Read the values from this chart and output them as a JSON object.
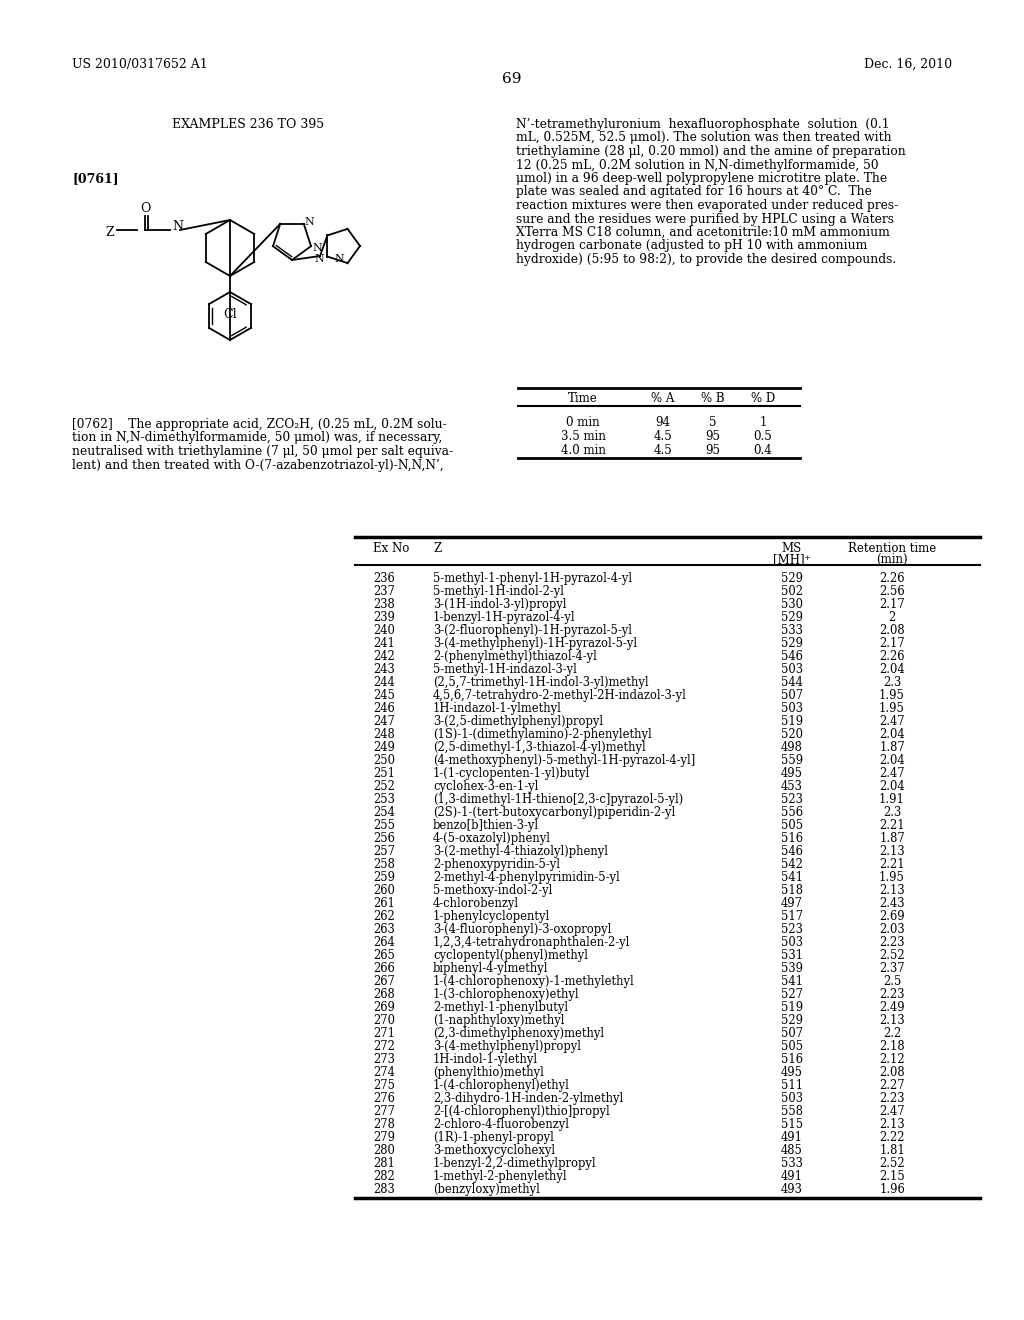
{
  "page_header_left": "US 2010/0317652 A1",
  "page_header_right": "Dec. 16, 2010",
  "page_number": "69",
  "section_title": "EXAMPLES 236 TO 395",
  "para_label1": "[0761]",
  "para_label2": "[0762]",
  "right_col_lines": [
    "N’-tetramethyluronium  hexafluorophosphate  solution  (0.1",
    "mL, 0.525M, 52.5 μmol). The solution was then treated with",
    "triethylamine (28 μl, 0.20 mmol) and the amine of preparation",
    "12 (0.25 mL, 0.2M solution in N,N-dimethylformamide, 50",
    "μmol) in a 96 deep-well polypropylene microtitre plate. The",
    "plate was sealed and agitated for 16 hours at 40° C.  The",
    "reaction mixtures were then evaporated under reduced pres-",
    "sure and the residues were purified by HPLC using a Waters",
    "XTerra MS C18 column, and acetonitrile:10 mM ammonium",
    "hydrogen carbonate (adjusted to pH 10 with ammonium",
    "hydroxide) (5:95 to 98:2), to provide the desired compounds."
  ],
  "para2_lines": [
    "[0762]    The appropriate acid, ZCO₂H, (0.25 mL, 0.2M solu-",
    "tion in N,N-dimethylformamide, 50 μmol) was, if necessary,",
    "neutralised with triethylamine (7 μl, 50 μmol per salt equiva-",
    "lent) and then treated with O-(7-azabenzotriazol-yl)-N,N,N’,"
  ],
  "hplc_headers": [
    "Time",
    "% A",
    "% B",
    "% D"
  ],
  "hplc_rows": [
    [
      "0 min",
      "94",
      "5",
      "1"
    ],
    [
      "3.5 min",
      "4.5",
      "95",
      "0.5"
    ],
    [
      "4.0 min",
      "4.5",
      "95",
      "0.4"
    ]
  ],
  "table_headers": [
    "Ex No",
    "Z",
    "MS",
    "[MH]⁺",
    "Retention time",
    "(min)"
  ],
  "table_rows": [
    [
      "236",
      "5-methyl-1-phenyl-1H-pyrazol-4-yl",
      "529",
      "2.26"
    ],
    [
      "237",
      "5-methyl-1H-indol-2-yl",
      "502",
      "2.56"
    ],
    [
      "238",
      "3-(1H-indol-3-yl)propyl",
      "530",
      "2.17"
    ],
    [
      "239",
      "1-benzyl-1H-pyrazol-4-yl",
      "529",
      "2"
    ],
    [
      "240",
      "3-(2-fluorophenyl)-1H-pyrazol-5-yl",
      "533",
      "2.08"
    ],
    [
      "241",
      "3-(4-methylphenyl)-1H-pyrazol-5-yl",
      "529",
      "2.17"
    ],
    [
      "242",
      "2-(phenylmethyl)thiazol-4-yl",
      "546",
      "2.26"
    ],
    [
      "243",
      "5-methyl-1H-indazol-3-yl",
      "503",
      "2.04"
    ],
    [
      "244",
      "(2,5,7-trimethyl-1H-indol-3-yl)methyl",
      "544",
      "2.3"
    ],
    [
      "245",
      "4,5,6,7-tetrahydro-2-methyl-2H-indazol-3-yl",
      "507",
      "1.95"
    ],
    [
      "246",
      "1H-indazol-1-ylmethyl",
      "503",
      "1.95"
    ],
    [
      "247",
      "3-(2,5-dimethylphenyl)propyl",
      "519",
      "2.47"
    ],
    [
      "248",
      "(1S)-1-(dimethylamino)-2-phenylethyl",
      "520",
      "2.04"
    ],
    [
      "249",
      "(2,5-dimethyl-1,3-thiazol-4-yl)methyl",
      "498",
      "1.87"
    ],
    [
      "250",
      "(4-methoxyphenyl)-5-methyl-1H-pyrazol-4-yl]",
      "559",
      "2.04"
    ],
    [
      "251",
      "1-(1-cyclopenten-1-yl)butyl",
      "495",
      "2.47"
    ],
    [
      "252",
      "cyclohex-3-en-1-yl",
      "453",
      "2.04"
    ],
    [
      "253",
      "(1,3-dimethyl-1H-thieno[2,3-c]pyrazol-5-yl)",
      "523",
      "1.91"
    ],
    [
      "254",
      "(2S)-1-(tert-butoxycarbonyl)piperidin-2-yl",
      "556",
      "2.3"
    ],
    [
      "255",
      "benzo[b]thien-3-yl",
      "505",
      "2.21"
    ],
    [
      "256",
      "4-(5-oxazolyl)phenyl",
      "516",
      "1.87"
    ],
    [
      "257",
      "3-(2-methyl-4-thiazolyl)phenyl",
      "546",
      "2.13"
    ],
    [
      "258",
      "2-phenoxypyridin-5-yl",
      "542",
      "2.21"
    ],
    [
      "259",
      "2-methyl-4-phenylpyrimidin-5-yl",
      "541",
      "1.95"
    ],
    [
      "260",
      "5-methoxy-indol-2-yl",
      "518",
      "2.13"
    ],
    [
      "261",
      "4-chlorobenzyl",
      "497",
      "2.43"
    ],
    [
      "262",
      "1-phenylcyclopentyl",
      "517",
      "2.69"
    ],
    [
      "263",
      "3-(4-fluorophenyl)-3-oxopropyl",
      "523",
      "2.03"
    ],
    [
      "264",
      "1,2,3,4-tetrahydronaphthalen-2-yl",
      "503",
      "2.23"
    ],
    [
      "265",
      "cyclopentyl(phenyl)methyl",
      "531",
      "2.52"
    ],
    [
      "266",
      "biphenyl-4-ylmethyl",
      "539",
      "2.37"
    ],
    [
      "267",
      "1-(4-chlorophenoxy)-1-methylethyl",
      "541",
      "2.5"
    ],
    [
      "268",
      "1-(3-chlorophenoxy)ethyl",
      "527",
      "2.23"
    ],
    [
      "269",
      "2-methyl-1-phenylbutyl",
      "519",
      "2.49"
    ],
    [
      "270",
      "(1-naphthyloxy)methyl",
      "529",
      "2.13"
    ],
    [
      "271",
      "(2,3-dimethylphenoxy)methyl",
      "507",
      "2.2"
    ],
    [
      "272",
      "3-(4-methylphenyl)propyl",
      "505",
      "2.18"
    ],
    [
      "273",
      "1H-indol-1-ylethyl",
      "516",
      "2.12"
    ],
    [
      "274",
      "(phenylthio)methyl",
      "495",
      "2.08"
    ],
    [
      "275",
      "1-(4-chlorophenyl)ethyl",
      "511",
      "2.27"
    ],
    [
      "276",
      "2,3-dihydro-1H-inden-2-ylmethyl",
      "503",
      "2.23"
    ],
    [
      "277",
      "2-[(4-chlorophenyl)thio]propyl",
      "558",
      "2.47"
    ],
    [
      "278",
      "2-chloro-4-fluorobenzyl",
      "515",
      "2.13"
    ],
    [
      "279",
      "(1R)-1-phenyl-propyl",
      "491",
      "2.22"
    ],
    [
      "280",
      "3-methoxycyclohexyl",
      "485",
      "1.81"
    ],
    [
      "281",
      "1-benzyl-2,2-dimethylpropyl",
      "533",
      "2.52"
    ],
    [
      "282",
      "1-methyl-2-phenylethyl",
      "491",
      "2.15"
    ],
    [
      "283",
      "(benzyloxy)methyl",
      "493",
      "1.96"
    ]
  ]
}
